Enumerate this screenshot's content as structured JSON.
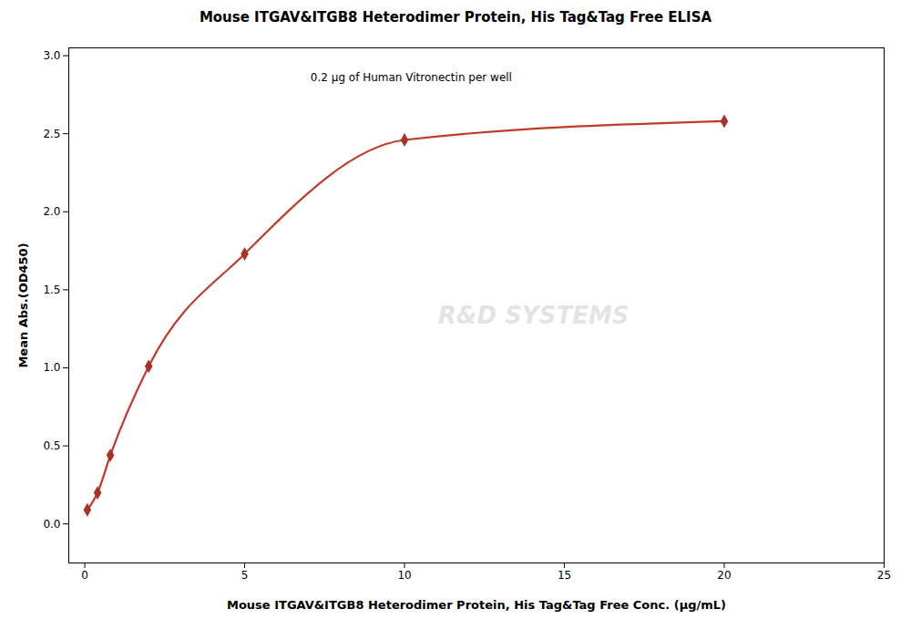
{
  "chart_data": {
    "type": "scatter",
    "title": "Mouse ITGAV&ITGB8 Heterodimer Protein, His Tag&Tag Free ELISA",
    "subtitle": "0.2 μg of Human Vitronectin per well",
    "xlabel": "Mouse ITGAV&ITGB8 Heterodimer Protein, His Tag&Tag Free Conc. (μg/mL)",
    "ylabel": "Mean Abs.(OD450)",
    "annotations": [
      {
        "text": "R&D SYSTEMS",
        "color": "#d0d0d0"
      }
    ],
    "x": [
      0.08,
      0.4,
      0.8,
      2.0,
      5.0,
      10.0,
      20.0
    ],
    "series": [
      {
        "type": "line",
        "color": "#c0392b",
        "values": [
          0.09,
          0.2,
          0.44,
          1.01,
          1.73,
          2.46,
          2.58
        ]
      },
      {
        "type": "scatter",
        "color": "#a93226",
        "marker": "diamond",
        "values": [
          0.09,
          0.2,
          0.44,
          1.01,
          1.73,
          2.46,
          2.58
        ]
      }
    ],
    "xlim": [
      -0.5,
      25
    ],
    "ylim": [
      -0.25,
      3.05
    ],
    "xticks": [
      0,
      5,
      10,
      15,
      20,
      25
    ],
    "yticks": [
      {
        "value": 0.0,
        "label": "0.0"
      },
      0.5,
      {
        "value": 1.0,
        "label": "1.0"
      },
      1.5,
      {
        "value": 2.0,
        "label": "2.0"
      },
      2.5,
      {
        "value": 3.0,
        "label": "3.0"
      }
    ],
    "grid": false
  }
}
